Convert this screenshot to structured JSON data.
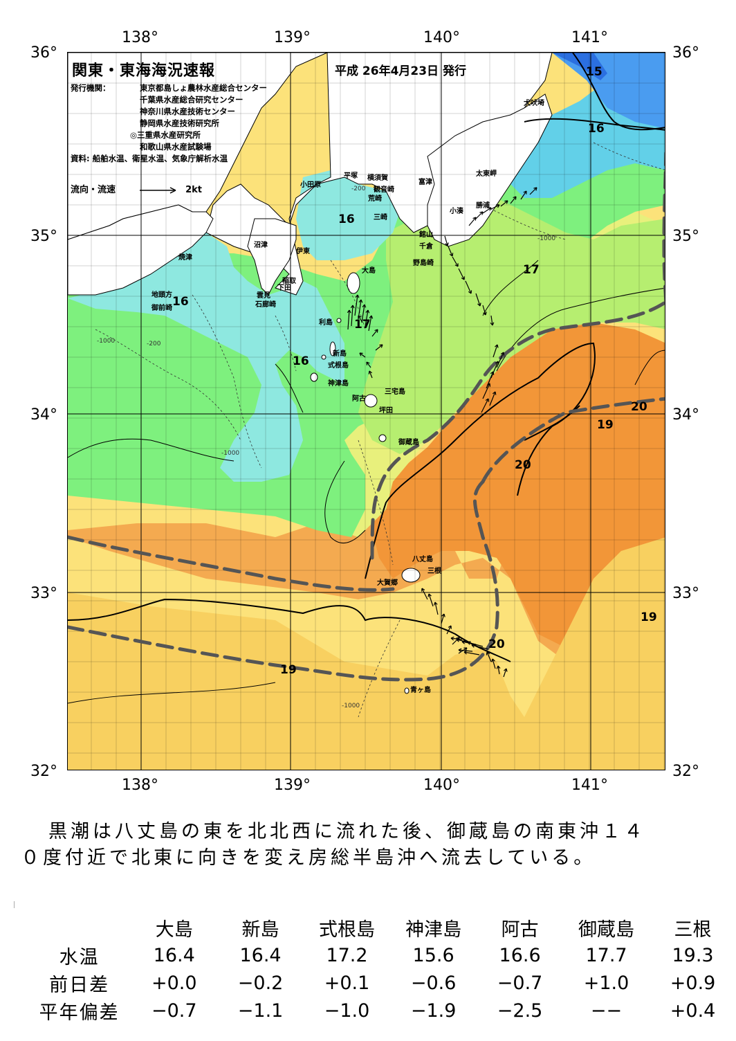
{
  "map": {
    "title": "関東・東海海況速報",
    "date": "平成 26年4月23日 発行",
    "publisher_label": "発行機関：",
    "publishers": [
      "東京都島しょ農林水産総合センター",
      "千葉県水産総合研究センター",
      "神奈川県水産技術センター",
      "静岡県水産技術研究所",
      "◎三重県水産研究所",
      "和歌山県水産試験場"
    ],
    "sources": "資料: 船舶水温、衛星水温、気象庁解析水温",
    "legend_label": "流向・流速",
    "legend_speed": "2kt",
    "lat_labels": [
      "36°",
      "35°",
      "34°",
      "33°",
      "32°"
    ],
    "lon_labels": [
      "138°",
      "139°",
      "140°",
      "141°"
    ],
    "places": {
      "inubozaki": "犬吠埼",
      "taitomisaki": "太東岬",
      "katsuura": "勝浦",
      "kominato": "小湊",
      "futtsu": "富津",
      "kannonzaki": "観音崎",
      "yokosuka": "横須賀",
      "hiratsuka": "平塚",
      "odawara": "小田原",
      "arasaki": "荒崎",
      "misaki": "三崎",
      "tateyama": "館山",
      "chikura": "千倉",
      "nojimazaki": "野島崎",
      "numazu": "沼津",
      "ito": "伊東",
      "yaizu": "焼津",
      "inatori": "稲取",
      "shimoda": "下田",
      "kumomi": "雲見",
      "irozaki": "石廊崎",
      "jitokata": "地頭方",
      "omaezaki": "御前崎",
      "oshima": "大島",
      "toshima": "利島",
      "niijima": "新島",
      "shikinejima": "式根島",
      "kozushima": "神津島",
      "ako": "阿古",
      "miyakejima": "三宅島",
      "tsubota": "坪田",
      "mikurajima": "御蔵島",
      "hachijojima": "八丈島",
      "mitsune": "三根",
      "okago": "大賀郷",
      "aogashima": "青ヶ島"
    },
    "isotherm_labels": [
      "15",
      "16",
      "16",
      "16",
      "16",
      "17",
      "17",
      "20",
      "19",
      "20",
      "19",
      "20",
      "19"
    ],
    "depth_labels": [
      "-200",
      "-1000"
    ],
    "colors": {
      "t15": "#2b6fe0",
      "t15b": "#4a9cf0",
      "t16": "#62d0e8",
      "t16b": "#8ee8e0",
      "t17": "#6ee6a8",
      "t17b": "#7ef07e",
      "t18": "#b6ee70",
      "t18b": "#e8f07c",
      "t19": "#fce27a",
      "t19b": "#f8d060",
      "t20": "#f4aa50",
      "t21": "#f29638",
      "land": "#ffffff",
      "kuroshio": "#555555"
    }
  },
  "summary": {
    "text_line1": "黒潮は八丈島の東を北北西に流れた後、御蔵島の南東沖１４",
    "text_line2": "０度付近で北東に向きを変え房総半島沖へ流去している。"
  },
  "stats": {
    "stations": [
      "大島",
      "新島",
      "式根島",
      "神津島",
      "阿古",
      "御蔵島",
      "三根"
    ],
    "rows": [
      {
        "label": "水温",
        "values": [
          "16.4",
          "16.4",
          "17.2",
          "15.6",
          "16.6",
          "17.7",
          "19.3"
        ]
      },
      {
        "label": "前日差",
        "values": [
          "+0.0",
          "−0.2",
          "+0.1",
          "−0.6",
          "−0.7",
          "+1.0",
          "+0.9"
        ]
      },
      {
        "label": "平年偏差",
        "values": [
          "−0.7",
          "−1.1",
          "−1.0",
          "−1.9",
          "−2.5",
          "−−",
          "+0.4"
        ]
      }
    ]
  }
}
